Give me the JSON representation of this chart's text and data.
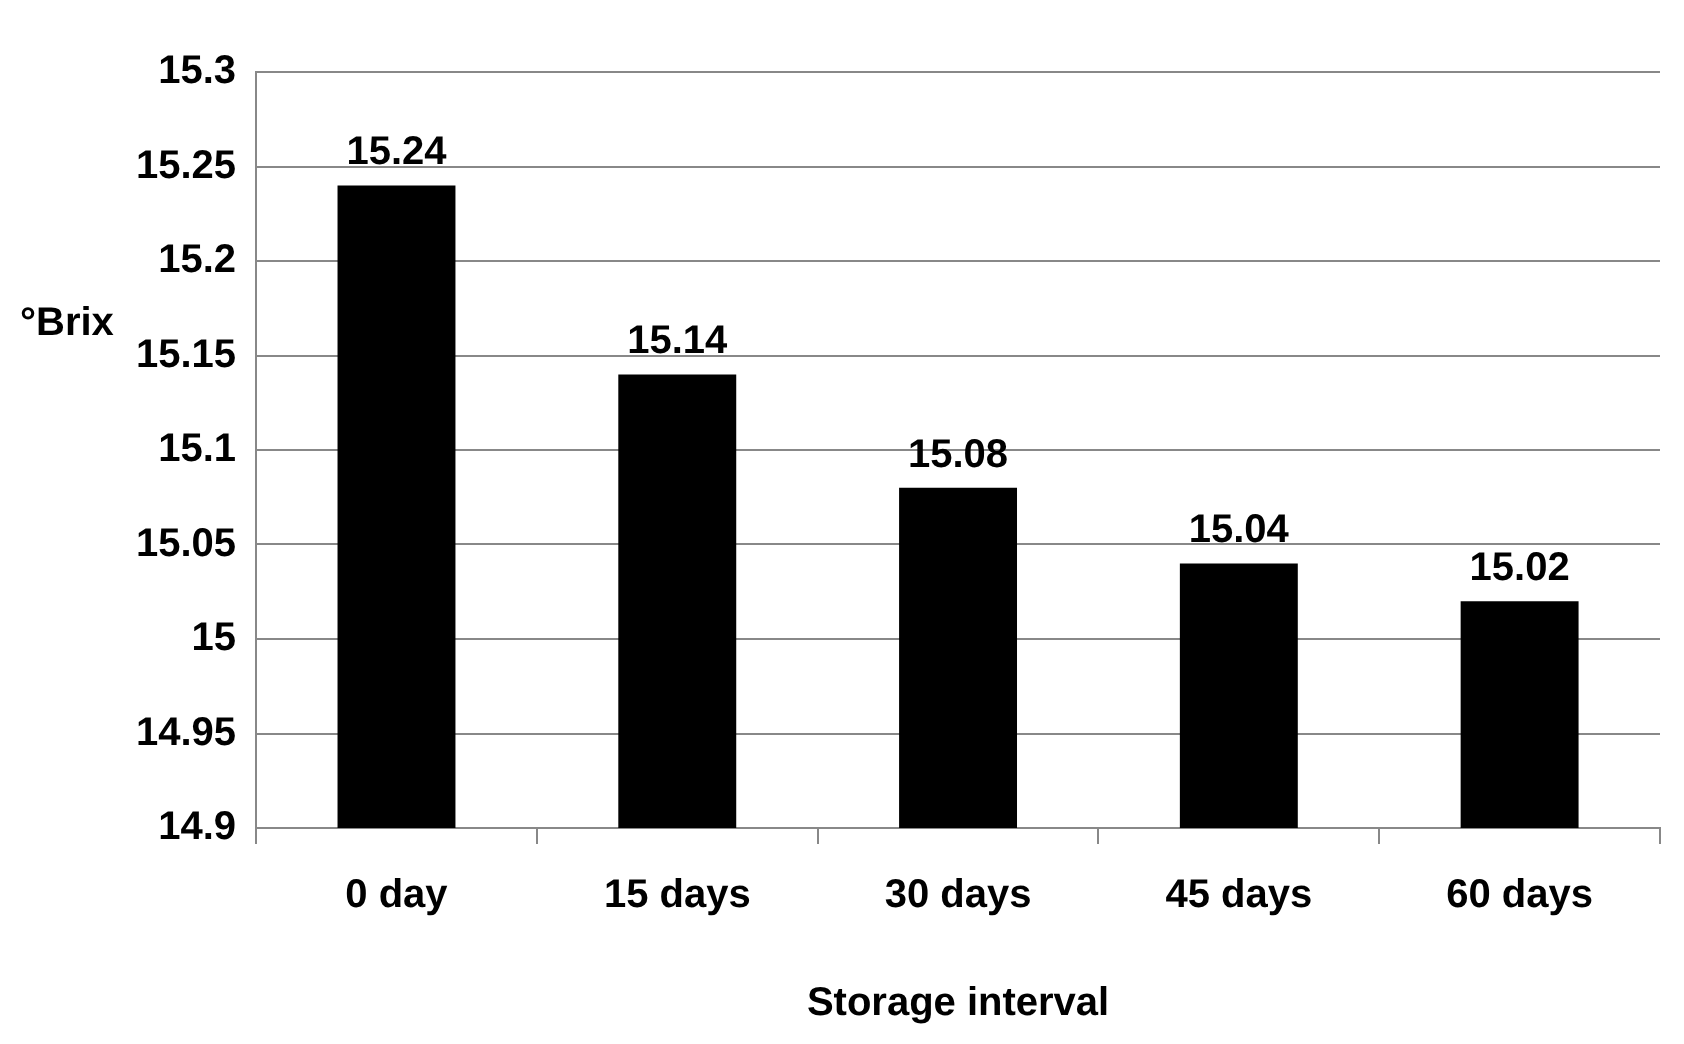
{
  "chart_data": {
    "type": "bar",
    "xlabel": "Storage interval",
    "ylabel": "°Brix",
    "categories": [
      "0 day",
      "15 days",
      "30 days",
      "45 days",
      "60 days"
    ],
    "values": [
      15.24,
      15.14,
      15.08,
      15.04,
      15.02
    ],
    "color": "#000000",
    "ylim": [
      14.9,
      15.3
    ],
    "yticks": [
      14.9,
      14.95,
      15,
      15.05,
      15.1,
      15.15,
      15.2,
      15.25,
      15.3
    ],
    "grid": "y",
    "data_labels": true,
    "legend": false
  }
}
